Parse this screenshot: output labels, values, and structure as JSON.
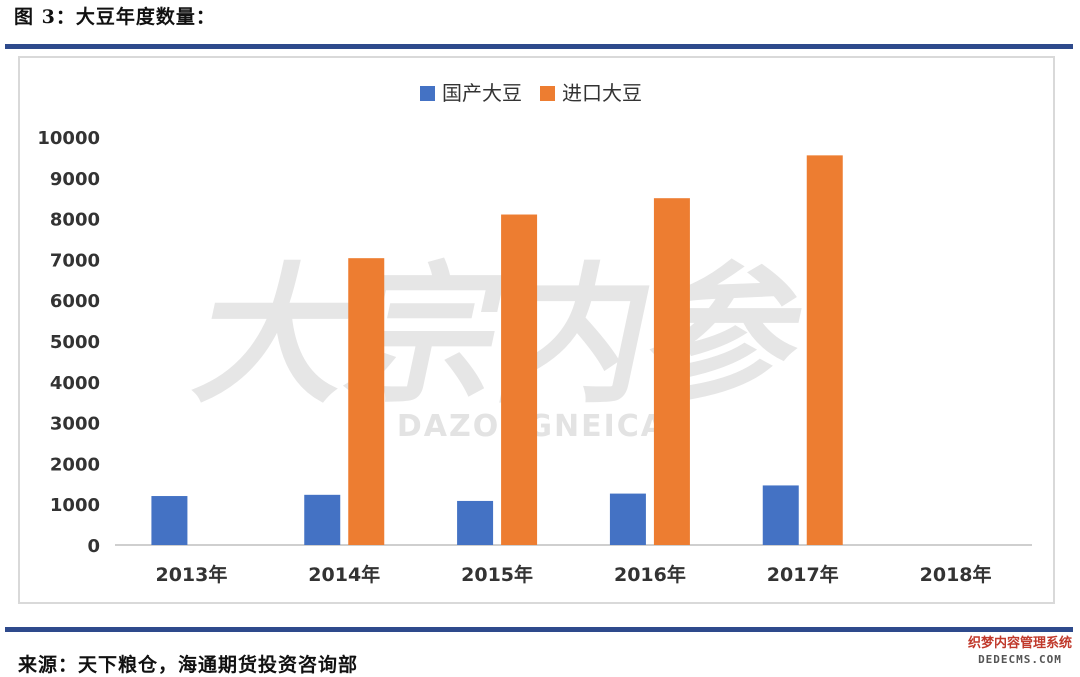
{
  "figure_title": "图 3：大豆年度数量：",
  "source": "来源：天下粮仓，海通期货投资咨询部",
  "watermark": {
    "main": "大宗内参",
    "sub": "DAZONGNEICAN"
  },
  "corner_watermark": {
    "line1": "织梦内容管理系统",
    "line2": "DEDECMS.COM"
  },
  "colors": {
    "domestic": "#4472c4",
    "imported": "#ed7d31",
    "rule": "#2e4a8c"
  },
  "chart_data": {
    "type": "bar",
    "categories": [
      "2013年",
      "2014年",
      "2015年",
      "2016年",
      "2017年",
      "2018年"
    ],
    "series": [
      {
        "name": "国产大豆",
        "values": [
          1200,
          1230,
          1080,
          1260,
          1460,
          null
        ]
      },
      {
        "name": "进口大豆",
        "values": [
          null,
          7030,
          8100,
          8500,
          9550,
          null
        ]
      }
    ],
    "ylim": [
      0,
      10000
    ],
    "yticks": [
      "0",
      "1000",
      "2000",
      "3000",
      "4000",
      "5000",
      "6000",
      "7000",
      "8000",
      "9000",
      "10000"
    ],
    "legend_position": "top-center",
    "grid": false
  }
}
